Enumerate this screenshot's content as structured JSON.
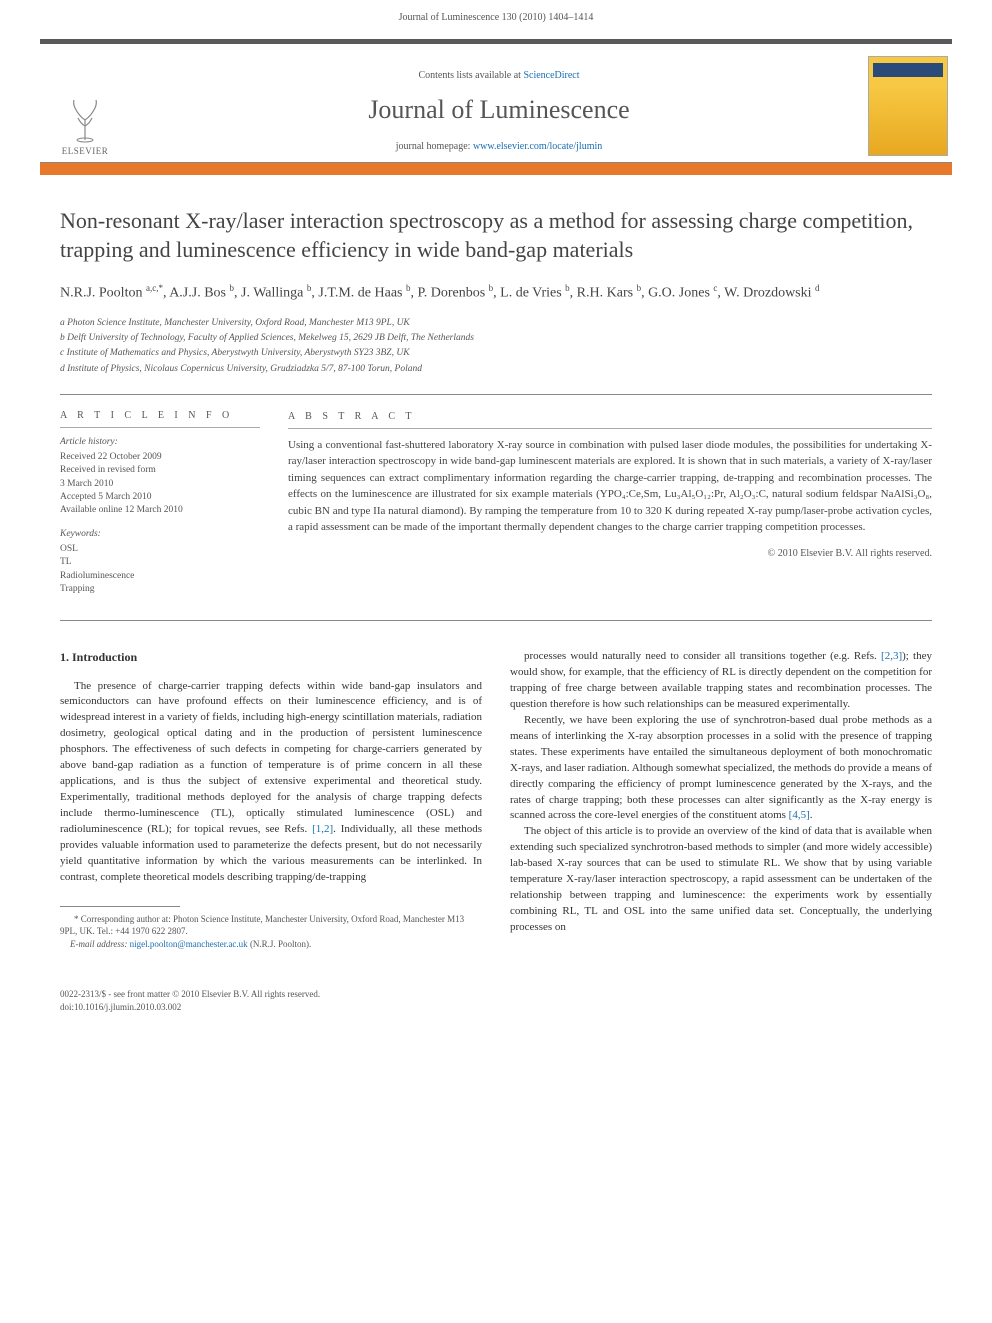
{
  "header_citation": "Journal of Luminescence 130 (2010) 1404–1414",
  "banner": {
    "contents_prefix": "Contents lists available at ",
    "contents_link": "ScienceDirect",
    "journal_title": "Journal of Luminescence",
    "homepage_prefix": "journal homepage: ",
    "homepage_link": "www.elsevier.com/locate/jlumin",
    "publisher_label": "ELSEVIER",
    "cover_label": "LUMINESCENCE"
  },
  "article": {
    "title": "Non-resonant X-ray/laser interaction spectroscopy as a method for assessing charge competition, trapping and luminescence efficiency in wide band-gap materials",
    "authors_html": "N.R.J. Poolton <sup>a,c,*</sup>, A.J.J. Bos <sup>b</sup>, J. Wallinga <sup>b</sup>, J.T.M. de Haas <sup>b</sup>, P. Dorenbos <sup>b</sup>, L. de Vries <sup>b</sup>, R.H. Kars <sup>b</sup>, G.O. Jones <sup>c</sup>, W. Drozdowski <sup>d</sup>",
    "affiliations": [
      "a Photon Science Institute, Manchester University, Oxford Road, Manchester M13 9PL, UK",
      "b Delft University of Technology, Faculty of Applied Sciences, Mekelweg 15, 2629 JB Delft, The Netherlands",
      "c Institute of Mathematics and Physics, Aberystwyth University, Aberystwyth SY23 3BZ, UK",
      "d Institute of Physics, Nicolaus Copernicus University, Grudziadzka 5/7, 87-100 Torun, Poland"
    ]
  },
  "info": {
    "heading": "A R T I C L E  I N F O",
    "history_label": "Article history:",
    "history": [
      "Received 22 October 2009",
      "Received in revised form",
      "3 March 2010",
      "Accepted 5 March 2010",
      "Available online 12 March 2010"
    ],
    "keywords_label": "Keywords:",
    "keywords": [
      "OSL",
      "TL",
      "Radioluminescence",
      "Trapping"
    ]
  },
  "abstract": {
    "heading": "A B S T R A C T",
    "text": "Using a conventional fast-shuttered laboratory X-ray source in combination with pulsed laser diode modules, the possibilities for undertaking X-ray/laser interaction spectroscopy in wide band-gap luminescent materials are explored. It is shown that in such materials, a variety of X-ray/laser timing sequences can extract complimentary information regarding the charge-carrier trapping, de-trapping and recombination processes. The effects on the luminescence are illustrated for six example materials (YPO₄:Ce,Sm, Lu₃Al₅O₁₂:Pr, Al₂O₃:C, natural sodium feldspar NaAlSi₃O₈, cubic BN and type IIa natural diamond). By ramping the temperature from 10 to 320 K during repeated X-ray pump/laser-probe activation cycles, a rapid assessment can be made of the important thermally dependent changes to the charge carrier trapping competition processes.",
    "copyright": "© 2010 Elsevier B.V. All rights reserved."
  },
  "body": {
    "section_heading": "1. Introduction",
    "col1_p1": "The presence of charge-carrier trapping defects within wide band-gap insulators and semiconductors can have profound effects on their luminescence efficiency, and is of widespread interest in a variety of fields, including high-energy scintillation materials, radiation dosimetry, geological optical dating and in the production of persistent luminescence phosphors. The effectiveness of such defects in competing for charge-carriers generated by above band-gap radiation as a function of temperature is of prime concern in all these applications, and is thus the subject of extensive experimental and theoretical study. Experimentally, traditional methods deployed for the analysis of charge trapping defects include thermo-luminescence (TL), optically stimulated luminescence (OSL) and radioluminescence (RL); for topical revues, see Refs. ",
    "ref12": "[1,2]",
    "col1_p1b": ". Individually, all these methods provides valuable information used to parameterize the defects present, but do not necessarily yield quantitative information by which the various measurements can be interlinked. In contrast, complete theoretical models describing trapping/de-trapping",
    "col2_p1a": "processes would naturally need to consider all transitions together (e.g. Refs. ",
    "ref23": "[2,3]",
    "col2_p1b": "); they would show, for example, that the efficiency of RL is directly dependent on the competition for trapping of free charge between available trapping states and recombination processes. The question therefore is how such relationships can be measured experimentally.",
    "col2_p2a": "Recently, we have been exploring the use of synchrotron-based dual probe methods as a means of interlinking the X-ray absorption processes in a solid with the presence of trapping states. These experiments have entailed the simultaneous deployment of both monochromatic X-rays, and laser radiation. Although somewhat specialized, the methods do provide a means of directly comparing the efficiency of prompt luminescence generated by the X-rays, and the rates of charge trapping; both these processes can alter significantly as the X-ray energy is scanned across the core-level energies of the constituent atoms ",
    "ref45": "[4,5]",
    "col2_p2b": ".",
    "col2_p3": "The object of this article is to provide an overview of the kind of data that is available when extending such specialized synchrotron-based methods to simpler (and more widely accessible) lab-based X-ray sources that can be used to stimulate RL. We show that by using variable temperature X-ray/laser interaction spectroscopy, a rapid assessment can be undertaken of the relationship between trapping and luminescence: the experiments work by essentially combining RL, TL and OSL into the same unified data set. Conceptually, the underlying processes on"
  },
  "footnote": {
    "corr": "* Corresponding author at: Photon Science Institute, Manchester University, Oxford Road, Manchester M13 9PL, UK. Tel.: +44 1970 622 2807.",
    "email_label": "E-mail address: ",
    "email": "nigel.poolton@manchester.ac.uk",
    "email_suffix": " (N.R.J. Poolton)."
  },
  "footer": {
    "line1": "0022-2313/$ - see front matter © 2010 Elsevier B.V. All rights reserved.",
    "line2": "doi:10.1016/j.jlumin.2010.03.002"
  },
  "colors": {
    "accent_orange": "#e8792a",
    "link_blue": "#1a6fb0",
    "header_gray": "#58595b",
    "text": "#333333"
  }
}
